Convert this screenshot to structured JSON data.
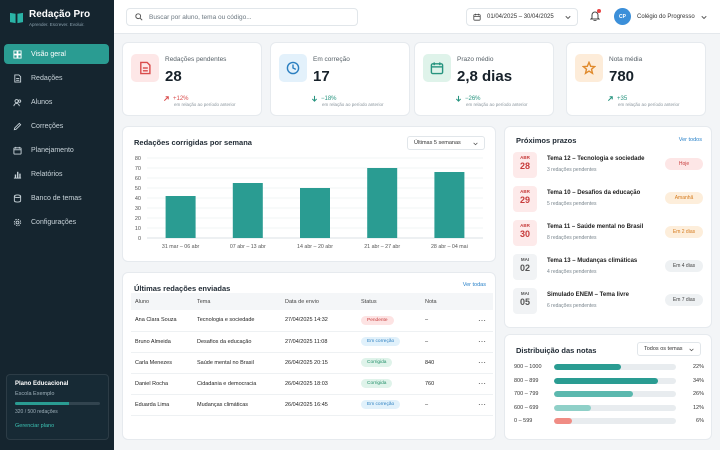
{
  "brand": {
    "name": "Redação Pro",
    "tagline": "Aprender. Escrever. Evoluir."
  },
  "nav": [
    {
      "label": "Visão geral",
      "icon": "grid-icon",
      "active": true
    },
    {
      "label": "Redações",
      "icon": "document-icon"
    },
    {
      "label": "Alunos",
      "icon": "users-icon"
    },
    {
      "label": "Correções",
      "icon": "edit-icon"
    },
    {
      "label": "Planejamento",
      "icon": "calendar-icon"
    },
    {
      "label": "Relatórios",
      "icon": "chart-icon"
    },
    {
      "label": "Banco de temas",
      "icon": "database-icon"
    },
    {
      "label": "Configurações",
      "icon": "gear-icon"
    }
  ],
  "plan": {
    "title": "Plano Educacional",
    "school": "Escola Exemplo",
    "usage": "320 / 500 redações",
    "usage_fraction": 0.64,
    "link": "Gerenciar plano"
  },
  "topbar": {
    "search_placeholder": "Buscar por aluno, tema ou código...",
    "date_range": "01/04/2025 – 30/04/2025",
    "avatar_initials": "CP",
    "user_name": "Colégio do Progresso"
  },
  "kpis": [
    {
      "label": "Redações pendentes",
      "value": "28",
      "delta": "+12%",
      "trend": "up",
      "sub": "em relação ao período anterior",
      "icon": "document-icon",
      "icon_bg": "#fde7e7",
      "icon_color": "#d94b4b",
      "delta_color": "#d94b4b"
    },
    {
      "label": "Em correção",
      "value": "17",
      "delta": "−18%",
      "trend": "down",
      "sub": "em relação ao período anterior",
      "icon": "clock-icon",
      "icon_bg": "#e3f1fb",
      "icon_color": "#2b7fc0",
      "delta_color": "#27947f"
    },
    {
      "label": "Prazo médio",
      "value": "2,8 dias",
      "delta": "−26%",
      "trend": "down",
      "sub": "em relação ao período anterior",
      "icon": "calendar-icon",
      "icon_bg": "#dff3ea",
      "icon_color": "#27947f",
      "delta_color": "#27947f"
    },
    {
      "label": "Nota média",
      "value": "780",
      "delta": "+35",
      "trend": "up",
      "sub": "em relação ao período anterior",
      "icon": "star-icon",
      "icon_bg": "#fdecd9",
      "icon_color": "#e08a2c",
      "delta_color": "#27947f"
    }
  ],
  "weekly": {
    "title": "Redações corrigidas por semana",
    "select": "Últimas 5 semanas",
    "bar_color": "#2a9c92"
  },
  "chart_data": {
    "type": "bar",
    "categories": [
      "31 mar – 06 abr",
      "07 abr – 13 abr",
      "14 abr – 20 abr",
      "21 abr – 27 abr",
      "28 abr – 04 mai"
    ],
    "values": [
      42,
      55,
      50,
      70,
      66
    ],
    "title": "Redações corrigidas por semana",
    "xlabel": "",
    "ylabel": "",
    "ylim": [
      0,
      80
    ],
    "yticks": [
      0,
      10,
      20,
      30,
      40,
      50,
      60,
      70,
      80
    ],
    "grid": true
  },
  "recent": {
    "title": "Últimas redações enviadas",
    "link": "Ver todas",
    "columns": [
      "Aluno",
      "Tema",
      "Data de envio",
      "Status",
      "Nota"
    ],
    "rows": [
      {
        "student": "Ana Clara Souza",
        "theme": "Tecnologia e sociedade",
        "date": "27/04/2025 14:32",
        "status": "Pendente",
        "kind": "pend",
        "grade": "–"
      },
      {
        "student": "Bruno Almeida",
        "theme": "Desafios da educação",
        "date": "27/04/2025 11:08",
        "status": "Em correção",
        "kind": "corr",
        "grade": "–"
      },
      {
        "student": "Carla Menezes",
        "theme": "Saúde mental no Brasil",
        "date": "26/04/2025 20:15",
        "status": "Corrigida",
        "kind": "done",
        "grade": "840"
      },
      {
        "student": "Daniel Rocha",
        "theme": "Cidadania e democracia",
        "date": "26/04/2025 18:03",
        "status": "Corrigida",
        "kind": "done",
        "grade": "760"
      },
      {
        "student": "Eduarda Lima",
        "theme": "Mudanças climáticas",
        "date": "26/04/2025 16:45",
        "status": "Em correção",
        "kind": "corr",
        "grade": "–"
      }
    ]
  },
  "deadlines": {
    "title": "Próximos prazos",
    "link": "Ver todos",
    "items": [
      {
        "month": "ABR",
        "day": "28",
        "title": "Tema 12 – Tecnologia e sociedade",
        "sub": "3 redações pendentes",
        "badge": "Hoje",
        "tone": "red"
      },
      {
        "month": "ABR",
        "day": "29",
        "title": "Tema 10 – Desafios da educação",
        "sub": "5 redações pendentes",
        "badge": "Amanhã",
        "tone": "orange"
      },
      {
        "month": "ABR",
        "day": "30",
        "title": "Tema 11 – Saúde mental no Brasil",
        "sub": "8 redações pendentes",
        "badge": "Em 2 dias",
        "tone": "orange"
      },
      {
        "month": "MAI",
        "day": "02",
        "title": "Tema 13 – Mudanças climáticas",
        "sub": "4 redações pendentes",
        "badge": "Em 4 dias",
        "tone": "gray"
      },
      {
        "month": "MAI",
        "day": "05",
        "title": "Simulado ENEM – Tema livre",
        "sub": "6 redações pendentes",
        "badge": "Em 7 dias",
        "tone": "gray"
      }
    ]
  },
  "distribution": {
    "title": "Distribuição das notas",
    "select": "Todos os temas",
    "rows": [
      {
        "range": "900 – 1000",
        "pct": "22%",
        "value": 22,
        "color": "#2a9c92"
      },
      {
        "range": "800 – 899",
        "pct": "34%",
        "value": 34,
        "color": "#2a9c92"
      },
      {
        "range": "700 – 799",
        "pct": "26%",
        "value": 26,
        "color": "#5bb8ae"
      },
      {
        "range": "600 – 699",
        "pct": "12%",
        "value": 12,
        "color": "#8fd0c8"
      },
      {
        "range": "0 – 599",
        "pct": "6%",
        "value": 6,
        "color": "#f08c84"
      }
    ]
  }
}
